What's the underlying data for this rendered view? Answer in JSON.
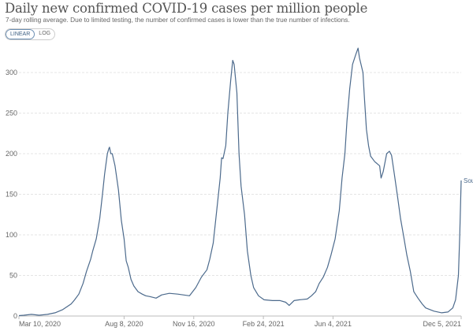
{
  "chart_data": {
    "type": "line",
    "title": "Daily new confirmed COVID-19 cases per million people",
    "subtitle": "7-day rolling average. Due to limited testing, the number of confirmed cases is lower than the true number of infections.",
    "scale_toggle": {
      "options": [
        "LINEAR",
        "LOG"
      ],
      "selected": "LINEAR"
    },
    "x_unit": "days since Mar 10, 2020",
    "xlim": [
      0,
      635
    ],
    "ylim": [
      0,
      330
    ],
    "yticks": [
      0,
      50,
      100,
      150,
      200,
      250,
      300
    ],
    "xticks": [
      {
        "day": 0,
        "label": "Mar 10, 2020"
      },
      {
        "day": 151,
        "label": "Aug 8, 2020"
      },
      {
        "day": 251,
        "label": "Nov 16, 2020"
      },
      {
        "day": 351,
        "label": "Feb 24, 2021"
      },
      {
        "day": 451,
        "label": "Jun 4, 2021"
      },
      {
        "day": 635,
        "label": "Dec 5, 2021"
      }
    ],
    "grid": true,
    "series": [
      {
        "name": "Sou",
        "color": "#4c6a8c",
        "points": [
          [
            0,
            0.5
          ],
          [
            7,
            1
          ],
          [
            18,
            2
          ],
          [
            29,
            1
          ],
          [
            41,
            2
          ],
          [
            52,
            4
          ],
          [
            63,
            8
          ],
          [
            75,
            15
          ],
          [
            80,
            20
          ],
          [
            86,
            27
          ],
          [
            92,
            40
          ],
          [
            97,
            55
          ],
          [
            103,
            70
          ],
          [
            106,
            80
          ],
          [
            111,
            95
          ],
          [
            116,
            120
          ],
          [
            120,
            150
          ],
          [
            123,
            175
          ],
          [
            127,
            200
          ],
          [
            129,
            206
          ],
          [
            130,
            208
          ],
          [
            132,
            200
          ],
          [
            134,
            200
          ],
          [
            138,
            185
          ],
          [
            143,
            155
          ],
          [
            147,
            118
          ],
          [
            151,
            95
          ],
          [
            154,
            68
          ],
          [
            157,
            60
          ],
          [
            161,
            45
          ],
          [
            165,
            37
          ],
          [
            171,
            30
          ],
          [
            177,
            27
          ],
          [
            182,
            25
          ],
          [
            188,
            24
          ],
          [
            197,
            22
          ],
          [
            205,
            26
          ],
          [
            216,
            28
          ],
          [
            228,
            27
          ],
          [
            245,
            25
          ],
          [
            254,
            35
          ],
          [
            262,
            48
          ],
          [
            270,
            57
          ],
          [
            274,
            70
          ],
          [
            279,
            90
          ],
          [
            284,
            130
          ],
          [
            289,
            170
          ],
          [
            291,
            195
          ],
          [
            293,
            194
          ],
          [
            297,
            210
          ],
          [
            300,
            250
          ],
          [
            304,
            290
          ],
          [
            307,
            315
          ],
          [
            309,
            310
          ],
          [
            313,
            275
          ],
          [
            316,
            200
          ],
          [
            319,
            160
          ],
          [
            324,
            125
          ],
          [
            328,
            80
          ],
          [
            333,
            50
          ],
          [
            337,
            35
          ],
          [
            344,
            25
          ],
          [
            352,
            20
          ],
          [
            364,
            19
          ],
          [
            375,
            19
          ],
          [
            383,
            17
          ],
          [
            388,
            13
          ],
          [
            395,
            19
          ],
          [
            403,
            20
          ],
          [
            414,
            21
          ],
          [
            420,
            25
          ],
          [
            426,
            30
          ],
          [
            431,
            40
          ],
          [
            437,
            48
          ],
          [
            443,
            60
          ],
          [
            448,
            75
          ],
          [
            454,
            95
          ],
          [
            460,
            130
          ],
          [
            464,
            170
          ],
          [
            468,
            200
          ],
          [
            471,
            240
          ],
          [
            475,
            280
          ],
          [
            479,
            310
          ],
          [
            484,
            323
          ],
          [
            487,
            330
          ],
          [
            489,
            318
          ],
          [
            494,
            300
          ],
          [
            496,
            270
          ],
          [
            499,
            230
          ],
          [
            502,
            210
          ],
          [
            505,
            197
          ],
          [
            511,
            190
          ],
          [
            514,
            188
          ],
          [
            518,
            185
          ],
          [
            520,
            170
          ],
          [
            523,
            178
          ],
          [
            528,
            200
          ],
          [
            532,
            203
          ],
          [
            535,
            198
          ],
          [
            539,
            175
          ],
          [
            544,
            145
          ],
          [
            548,
            120
          ],
          [
            553,
            95
          ],
          [
            557,
            75
          ],
          [
            562,
            55
          ],
          [
            567,
            30
          ],
          [
            573,
            22
          ],
          [
            579,
            15
          ],
          [
            584,
            10
          ],
          [
            596,
            6
          ],
          [
            607,
            4
          ],
          [
            616,
            5
          ],
          [
            623,
            10
          ],
          [
            627,
            20
          ],
          [
            631,
            50
          ],
          [
            633,
            100
          ],
          [
            635,
            167
          ]
        ]
      }
    ]
  }
}
